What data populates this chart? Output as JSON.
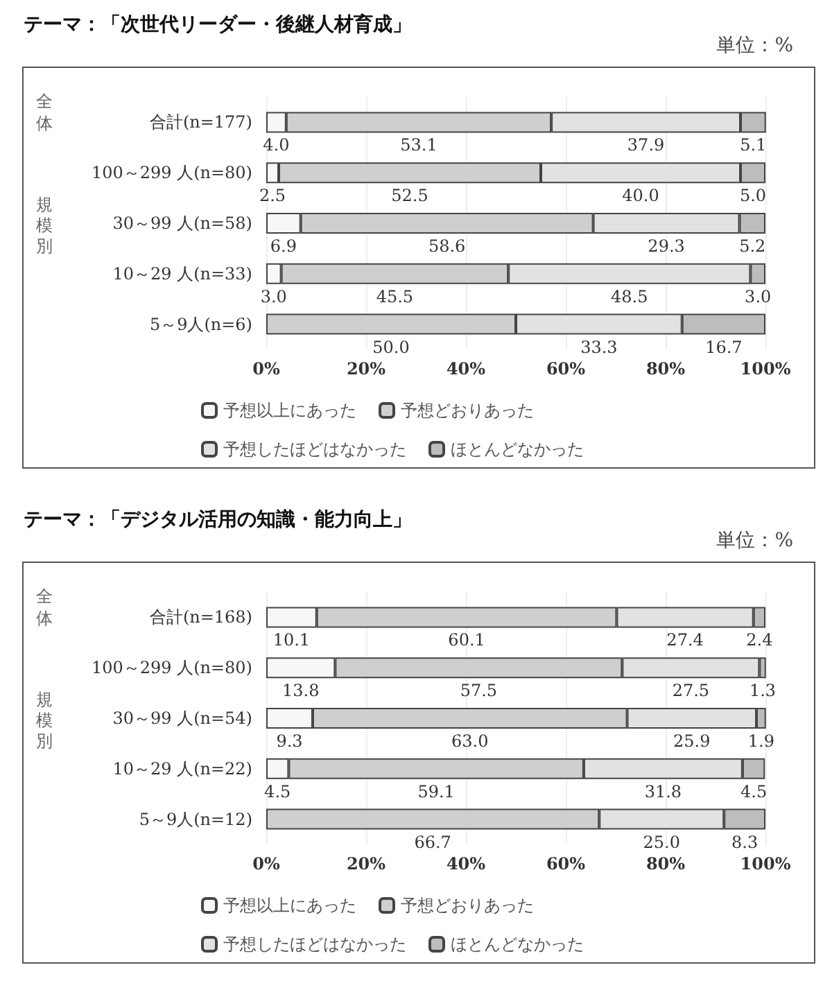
{
  "chart_data": [
    {
      "type": "bar",
      "orientation": "horizontal",
      "stacked": true,
      "title": "テーマ：「次世代リーダー・後継人材育成」",
      "annotations": [
        "単位：%",
        "全体",
        "規模別"
      ],
      "categories": [
        "合計(n=177)",
        "100～299 人(n=80)",
        "30～99 人(n=58)",
        "10～29 人(n=33)",
        "5～9人(n=6)"
      ],
      "series": [
        {
          "name": "予想以上にあった",
          "color": "#f7f7f7",
          "values": [
            4.0,
            2.5,
            6.9,
            3.0,
            null
          ],
          "value_labels": [
            "4.0",
            "2.5",
            "6.9",
            "3.0",
            null
          ]
        },
        {
          "name": "予想どおりあった",
          "color": "#cfcfcf",
          "values": [
            53.1,
            52.5,
            58.6,
            45.5,
            50.0
          ],
          "value_labels": [
            "53.1",
            "52.5",
            "58.6",
            "45.5",
            "50.0"
          ]
        },
        {
          "name": "予想したほどはなかった",
          "color": "#e2e2e2",
          "values": [
            37.9,
            40.0,
            29.3,
            48.5,
            33.3
          ],
          "value_labels": [
            "37.9",
            "40.0",
            "29.3",
            "48.5",
            "33.3"
          ]
        },
        {
          "name": "ほとんどなかった",
          "color": "#bdbdbd",
          "values": [
            5.1,
            5.0,
            5.2,
            3.0,
            16.7
          ],
          "value_labels": [
            "5.1",
            "5.0",
            "5.2",
            "3.0",
            "16.7"
          ]
        }
      ],
      "xlim": [
        0,
        100
      ],
      "xticks": [
        {
          "value": 0,
          "label": "0%"
        },
        {
          "value": 20,
          "label": "20%"
        },
        {
          "value": 40,
          "label": "40%"
        },
        {
          "value": 60,
          "label": "60%"
        },
        {
          "value": 80,
          "label": "80%"
        },
        {
          "value": 100,
          "label": "100%"
        }
      ],
      "grid": "x",
      "legend": "bottom"
    },
    {
      "type": "bar",
      "orientation": "horizontal",
      "stacked": true,
      "title": "テーマ：「デジタル活用の知識・能力向上」",
      "annotations": [
        "単位：%",
        "全体",
        "規模別"
      ],
      "categories": [
        "合計(n=168)",
        "100～299 人(n=80)",
        "30～99 人(n=54)",
        "10～29 人(n=22)",
        "5～9人(n=12)"
      ],
      "series": [
        {
          "name": "予想以上にあった",
          "color": "#f7f7f7",
          "values": [
            10.1,
            13.8,
            9.3,
            4.5,
            null
          ],
          "value_labels": [
            "10.1",
            "13.8",
            "9.3",
            "4.5",
            null
          ]
        },
        {
          "name": "予想どおりあった",
          "color": "#cfcfcf",
          "values": [
            60.1,
            57.5,
            63.0,
            59.1,
            66.7
          ],
          "value_labels": [
            "60.1",
            "57.5",
            "63.0",
            "59.1",
            "66.7"
          ]
        },
        {
          "name": "予想したほどはなかった",
          "color": "#e2e2e2",
          "values": [
            27.4,
            27.5,
            25.9,
            31.8,
            25.0
          ],
          "value_labels": [
            "27.4",
            "27.5",
            "25.9",
            "31.8",
            "25.0"
          ]
        },
        {
          "name": "ほとんどなかった",
          "color": "#bdbdbd",
          "values": [
            2.4,
            1.3,
            1.9,
            4.5,
            8.3
          ],
          "value_labels": [
            "2.4",
            "1.3",
            "1.9",
            "4.5",
            "8.3"
          ]
        }
      ],
      "xlim": [
        0,
        100
      ],
      "xticks": [
        {
          "value": 0,
          "label": "0%"
        },
        {
          "value": 20,
          "label": "20%"
        },
        {
          "value": 40,
          "label": "40%"
        },
        {
          "value": 60,
          "label": "60%"
        },
        {
          "value": 80,
          "label": "80%"
        },
        {
          "value": 100,
          "label": "100%"
        }
      ],
      "grid": "x",
      "legend": "bottom"
    }
  ]
}
